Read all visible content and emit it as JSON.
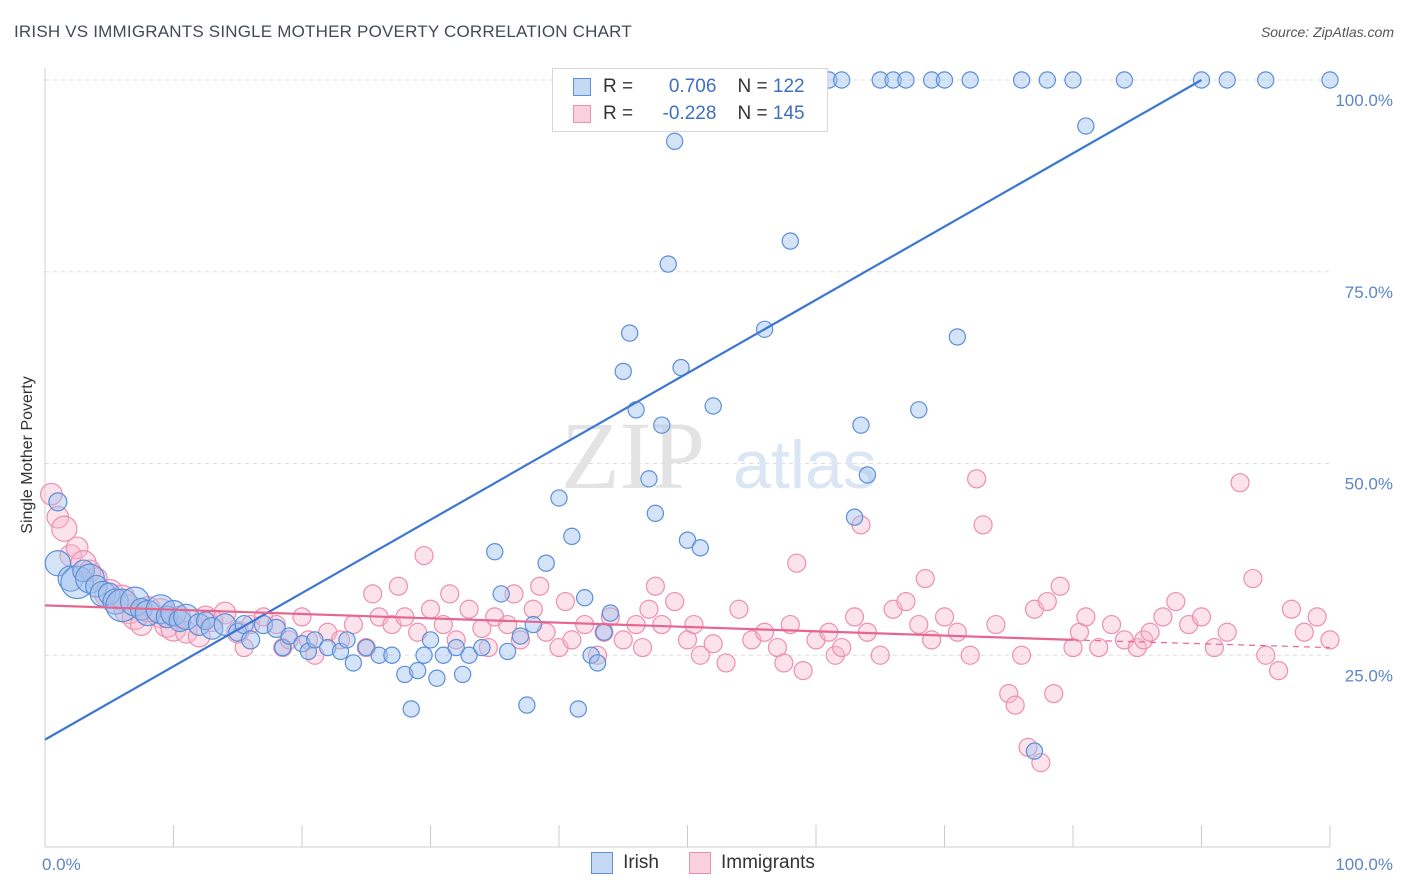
{
  "header": {
    "title": "IRISH VS IMMIGRANTS SINGLE MOTHER POVERTY CORRELATION CHART",
    "source": "Source: ZipAtlas.com"
  },
  "watermark": {
    "zip": "ZIP",
    "atlas": "atlas"
  },
  "stats": [
    {
      "r_label": "R =",
      "r_value": "0.706",
      "n_label": "N =",
      "n_value": "122",
      "color": "#5b8fd9"
    },
    {
      "r_label": "R =",
      "r_value": "-0.228",
      "n_label": "N =",
      "n_value": "145",
      "color": "#ee8fae"
    }
  ],
  "chart_data": {
    "type": "scatter",
    "ylabel": "Single Mother Poverty",
    "xlim": [
      0,
      100
    ],
    "ylim": [
      0,
      100
    ],
    "x_tick_labels": [
      "0.0%",
      "100.0%"
    ],
    "y_ticks": [
      {
        "value": 25,
        "label": "25.0%"
      },
      {
        "value": 50,
        "label": "50.0%"
      },
      {
        "value": 75,
        "label": "75.0%"
      },
      {
        "value": 100,
        "label": "100.0%"
      }
    ],
    "grid": "horizontal dashed",
    "legend": "bottom-center",
    "series": [
      {
        "name": "Irish",
        "color": "#5b8fd9",
        "trend": {
          "x": [
            0,
            90
          ],
          "y": [
            14,
            100
          ]
        },
        "points": [
          [
            1,
            45,
            10
          ],
          [
            1,
            37,
            14
          ],
          [
            2,
            35,
            14
          ],
          [
            2.5,
            34.5,
            18
          ],
          [
            3,
            36,
            12
          ],
          [
            3.5,
            35,
            16
          ],
          [
            4,
            34,
            12
          ],
          [
            4.5,
            33,
            14
          ],
          [
            5,
            33,
            12
          ],
          [
            5.5,
            32,
            14
          ],
          [
            6,
            31.5,
            18
          ],
          [
            7,
            32,
            16
          ],
          [
            7.5,
            31,
            12
          ],
          [
            8,
            30.5,
            14
          ],
          [
            9,
            31,
            16
          ],
          [
            9.5,
            30,
            12
          ],
          [
            10,
            30.5,
            14
          ],
          [
            10.5,
            29.5,
            12
          ],
          [
            11,
            30,
            14
          ],
          [
            12,
            29,
            12
          ],
          [
            12.5,
            29.5,
            10
          ],
          [
            13,
            28.5,
            12
          ],
          [
            14,
            29,
            12
          ],
          [
            15,
            28,
            10
          ],
          [
            15.5,
            29,
            10
          ],
          [
            16,
            27,
            10
          ],
          [
            17,
            29,
            10
          ],
          [
            18,
            28.5,
            10
          ],
          [
            18.5,
            26,
            9
          ],
          [
            19,
            27.5,
            9
          ],
          [
            20,
            26.5,
            9
          ],
          [
            20.5,
            25.5,
            9
          ],
          [
            21,
            27,
            9
          ],
          [
            22,
            26,
            9
          ],
          [
            23,
            25.5,
            9
          ],
          [
            23.5,
            27,
            9
          ],
          [
            24,
            24,
            9
          ],
          [
            25,
            26,
            9
          ],
          [
            26,
            25,
            9
          ],
          [
            27,
            25,
            9
          ],
          [
            28,
            22.5,
            9
          ],
          [
            28.5,
            18,
            9
          ],
          [
            29,
            23,
            9
          ],
          [
            29.5,
            25,
            9
          ],
          [
            30,
            27,
            9
          ],
          [
            30.5,
            22,
            9
          ],
          [
            31,
            25,
            9
          ],
          [
            32,
            26,
            9
          ],
          [
            32.5,
            22.5,
            9
          ],
          [
            33,
            25,
            9
          ],
          [
            34,
            26,
            9
          ],
          [
            35,
            38.5,
            9
          ],
          [
            35.5,
            33,
            9
          ],
          [
            36,
            25.5,
            9
          ],
          [
            37,
            27.5,
            9
          ],
          [
            37.5,
            18.5,
            9
          ],
          [
            38,
            29,
            9
          ],
          [
            39,
            37,
            9
          ],
          [
            40,
            45.5,
            9
          ],
          [
            41,
            40.5,
            9
          ],
          [
            41.5,
            18,
            9
          ],
          [
            42,
            32.5,
            9
          ],
          [
            42.5,
            25,
            9
          ],
          [
            43,
            24,
            9
          ],
          [
            43.5,
            28,
            9
          ],
          [
            44,
            30.5,
            9
          ],
          [
            45,
            62,
            9
          ],
          [
            45.5,
            67,
            9
          ],
          [
            46,
            57,
            9
          ],
          [
            47,
            48,
            9
          ],
          [
            47.5,
            43.5,
            9
          ],
          [
            48,
            55,
            9
          ],
          [
            48.5,
            76,
            9
          ],
          [
            49,
            92,
            9
          ],
          [
            49.5,
            62.5,
            9
          ],
          [
            50,
            40,
            9
          ],
          [
            51,
            39,
            9
          ],
          [
            52,
            57.5,
            9
          ],
          [
            52,
            100,
            9
          ],
          [
            53,
            100,
            9
          ],
          [
            54,
            100,
            9
          ],
          [
            55,
            100,
            9
          ],
          [
            56,
            67.5,
            9
          ],
          [
            57,
            100,
            9
          ],
          [
            58,
            79,
            9
          ],
          [
            59,
            100,
            9
          ],
          [
            60,
            100,
            9
          ],
          [
            61,
            100,
            9
          ],
          [
            62,
            100,
            9
          ],
          [
            63,
            43,
            9
          ],
          [
            63.5,
            55,
            9
          ],
          [
            64,
            48.5,
            9
          ],
          [
            65,
            100,
            9
          ],
          [
            66,
            100,
            9
          ],
          [
            67,
            100,
            9
          ],
          [
            68,
            57,
            9
          ],
          [
            69,
            100,
            9
          ],
          [
            70,
            100,
            9
          ],
          [
            71,
            66.5,
            9
          ],
          [
            72,
            100,
            9
          ],
          [
            76,
            100,
            9
          ],
          [
            77,
            12.5,
            9
          ],
          [
            78,
            100,
            9
          ],
          [
            80,
            100,
            9
          ],
          [
            81,
            94,
            9
          ],
          [
            84,
            100,
            9
          ],
          [
            90,
            100,
            9
          ],
          [
            92,
            100,
            9
          ],
          [
            95,
            100,
            9
          ],
          [
            100,
            100,
            9
          ]
        ]
      },
      {
        "name": "Immigrants",
        "color": "#ee8fae",
        "trend": {
          "x": [
            0,
            80
          ],
          "y": [
            31.5,
            27
          ],
          "dash_x": [
            80,
            100
          ],
          "dash_y": [
            27,
            26
          ]
        },
        "points": [
          [
            0.5,
            46,
            12
          ],
          [
            1,
            43,
            12
          ],
          [
            1.5,
            41.5,
            14
          ],
          [
            2,
            38,
            12
          ],
          [
            2.5,
            39,
            12
          ],
          [
            3,
            37,
            14
          ],
          [
            3.5,
            36,
            12
          ],
          [
            4,
            35,
            12
          ],
          [
            5,
            33,
            16
          ],
          [
            6,
            32.5,
            14
          ],
          [
            6.5,
            31,
            16
          ],
          [
            7,
            30,
            14
          ],
          [
            7.5,
            29,
            12
          ],
          [
            8,
            31,
            14
          ],
          [
            9,
            30.5,
            16
          ],
          [
            9.5,
            29,
            14
          ],
          [
            10,
            28.5,
            14
          ],
          [
            10.5,
            30,
            12
          ],
          [
            11,
            28,
            12
          ],
          [
            12,
            27.5,
            12
          ],
          [
            12.5,
            30,
            12
          ],
          [
            13,
            29.5,
            12
          ],
          [
            14,
            30.5,
            12
          ],
          [
            15,
            28,
            12
          ],
          [
            15.5,
            26,
            10
          ],
          [
            16,
            29,
            10
          ],
          [
            17,
            30,
            10
          ],
          [
            18,
            29,
            10
          ],
          [
            18.5,
            26,
            10
          ],
          [
            19,
            27,
            10
          ],
          [
            20,
            30,
            10
          ],
          [
            20.5,
            27,
            10
          ],
          [
            21,
            25,
            10
          ],
          [
            22,
            28,
            10
          ],
          [
            23,
            27,
            10
          ],
          [
            24,
            29,
            10
          ],
          [
            25,
            26,
            10
          ],
          [
            25.5,
            33,
            10
          ],
          [
            26,
            30,
            10
          ],
          [
            27,
            29,
            10
          ],
          [
            27.5,
            34,
            10
          ],
          [
            28,
            30,
            10
          ],
          [
            29,
            28,
            10
          ],
          [
            29.5,
            38,
            10
          ],
          [
            30,
            31,
            10
          ],
          [
            31,
            29,
            10
          ],
          [
            31.5,
            33,
            10
          ],
          [
            32,
            27,
            10
          ],
          [
            33,
            31,
            10
          ],
          [
            34,
            28.5,
            10
          ],
          [
            34.5,
            26,
            10
          ],
          [
            35,
            30,
            10
          ],
          [
            36,
            29,
            10
          ],
          [
            36.5,
            33,
            10
          ],
          [
            37,
            27,
            10
          ],
          [
            38,
            31,
            10
          ],
          [
            38.5,
            34,
            10
          ],
          [
            39,
            28,
            10
          ],
          [
            40,
            26,
            10
          ],
          [
            40.5,
            32,
            10
          ],
          [
            41,
            27,
            10
          ],
          [
            42,
            29,
            10
          ],
          [
            43,
            25,
            10
          ],
          [
            43.5,
            28,
            10
          ],
          [
            44,
            30,
            10
          ],
          [
            45,
            27,
            10
          ],
          [
            46,
            29,
            10
          ],
          [
            46.5,
            26,
            10
          ],
          [
            47,
            31,
            10
          ],
          [
            47.5,
            34,
            10
          ],
          [
            48,
            29,
            10
          ],
          [
            49,
            32,
            10
          ],
          [
            50,
            27,
            10
          ],
          [
            50.5,
            29,
            10
          ],
          [
            51,
            25,
            10
          ],
          [
            52,
            26.5,
            10
          ],
          [
            53,
            24,
            10
          ],
          [
            54,
            31,
            10
          ],
          [
            55,
            27,
            10
          ],
          [
            56,
            28,
            10
          ],
          [
            57,
            26,
            10
          ],
          [
            57.5,
            24,
            10
          ],
          [
            58,
            29,
            10
          ],
          [
            58.5,
            37,
            10
          ],
          [
            59,
            23,
            10
          ],
          [
            60,
            27,
            10
          ],
          [
            61,
            28,
            10
          ],
          [
            61.5,
            25,
            10
          ],
          [
            62,
            26,
            10
          ],
          [
            63,
            30,
            10
          ],
          [
            63.5,
            42,
            10
          ],
          [
            64,
            28,
            10
          ],
          [
            65,
            25,
            10
          ],
          [
            66,
            31,
            10
          ],
          [
            67,
            32,
            10
          ],
          [
            68,
            29,
            10
          ],
          [
            68.5,
            35,
            10
          ],
          [
            69,
            27,
            10
          ],
          [
            70,
            30,
            10
          ],
          [
            71,
            28,
            10
          ],
          [
            72,
            25,
            10
          ],
          [
            72.5,
            48,
            10
          ],
          [
            73,
            42,
            10
          ],
          [
            74,
            29,
            10
          ],
          [
            75,
            20,
            10
          ],
          [
            75.5,
            18.5,
            10
          ],
          [
            76,
            25,
            10
          ],
          [
            76.5,
            13,
            10
          ],
          [
            77,
            31,
            10
          ],
          [
            77.5,
            11,
            10
          ],
          [
            78,
            32,
            10
          ],
          [
            78.5,
            20,
            10
          ],
          [
            79,
            34,
            10
          ],
          [
            80,
            26,
            10
          ],
          [
            80.5,
            28,
            10
          ],
          [
            81,
            30,
            10
          ],
          [
            82,
            26,
            10
          ],
          [
            83,
            29,
            10
          ],
          [
            84,
            27,
            10
          ],
          [
            85,
            26,
            10
          ],
          [
            85.5,
            27,
            10
          ],
          [
            86,
            28,
            10
          ],
          [
            87,
            30,
            10
          ],
          [
            88,
            32,
            10
          ],
          [
            89,
            29,
            10
          ],
          [
            90,
            30,
            10
          ],
          [
            91,
            26,
            10
          ],
          [
            92,
            28,
            10
          ],
          [
            93,
            47.5,
            10
          ],
          [
            94,
            35,
            10
          ],
          [
            95,
            25,
            10
          ],
          [
            96,
            23,
            10
          ],
          [
            97,
            31,
            10
          ],
          [
            98,
            28,
            10
          ],
          [
            99,
            30,
            10
          ],
          [
            100,
            27,
            10
          ]
        ]
      }
    ]
  }
}
